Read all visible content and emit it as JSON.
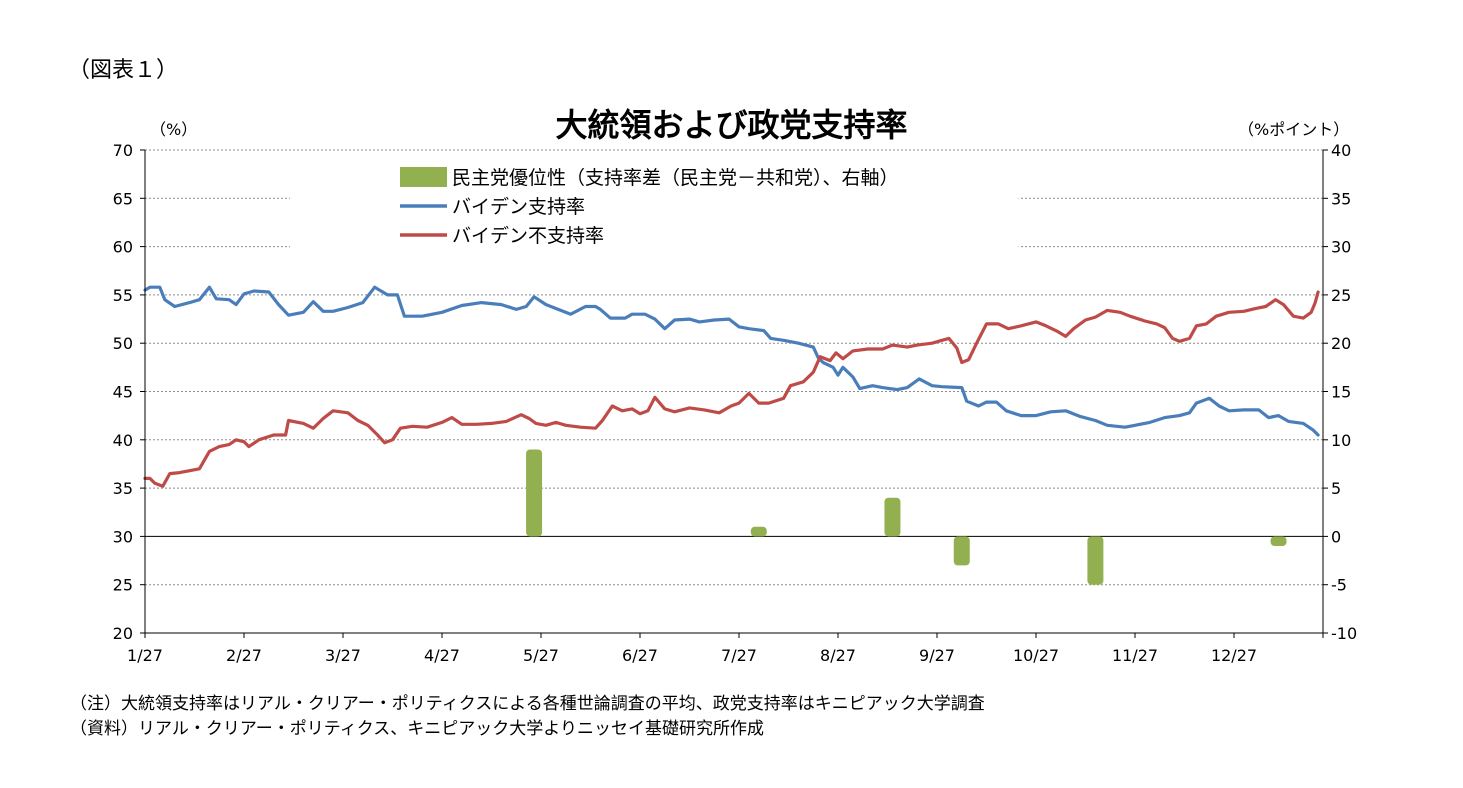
{
  "figure_label": "（図表１）",
  "notes": [
    "（注）大統領支持率はリアル・クリアー・ポリティクスによる各種世論調査の平均、政党支持率はキニピアック大学調査",
    "（資料）リアル・クリアー・ポリティクス、キニピアック大学よりニッセイ基礎研究所作成"
  ],
  "chart_data": {
    "type": "line",
    "title": "大統領および政党支持率",
    "ylabel": "（%）",
    "y2label": "（%ポイント）",
    "ylim": [
      20,
      70
    ],
    "y2lim": [
      -10,
      40
    ],
    "yticks": [
      "70",
      "65",
      "60",
      "55",
      "50",
      "45",
      "40",
      "35",
      "30",
      "25",
      "20"
    ],
    "y2ticks": [
      "40",
      "35",
      "30",
      "25",
      "20",
      "15",
      "10",
      "5",
      "0",
      "-5",
      "-10"
    ],
    "categories": [
      "1/27",
      "2/27",
      "3/27",
      "4/27",
      "5/27",
      "6/27",
      "7/27",
      "8/27",
      "9/27",
      "10/27",
      "11/27",
      "12/27"
    ],
    "grid": true,
    "legend_position": "top-center",
    "series": [
      {
        "name": "民主党優位性（支持率差（民主党－共和党）、右軸）",
        "type": "bar",
        "axis": "right",
        "color": "#92B050",
        "points": [
          {
            "x": 3.93,
            "y": 9
          },
          {
            "x": 6.2,
            "y": 1
          },
          {
            "x": 7.55,
            "y": 4
          },
          {
            "x": 8.25,
            "y": -3
          },
          {
            "x": 9.6,
            "y": -5
          },
          {
            "x": 11.45,
            "y": -1
          }
        ]
      },
      {
        "name": "バイデン支持率",
        "type": "line",
        "axis": "left",
        "color": "#4A7EBB",
        "points": [
          {
            "x": 0,
            "y": 55.5
          },
          {
            "x": 0.05,
            "y": 55.8
          },
          {
            "x": 0.15,
            "y": 55.8
          },
          {
            "x": 0.2,
            "y": 54.5
          },
          {
            "x": 0.3,
            "y": 53.8
          },
          {
            "x": 0.45,
            "y": 54.2
          },
          {
            "x": 0.55,
            "y": 54.5
          },
          {
            "x": 0.65,
            "y": 55.8
          },
          {
            "x": 0.72,
            "y": 54.6
          },
          {
            "x": 0.85,
            "y": 54.5
          },
          {
            "x": 0.92,
            "y": 54.0
          },
          {
            "x": 1.0,
            "y": 55.1
          },
          {
            "x": 1.1,
            "y": 55.4
          },
          {
            "x": 1.25,
            "y": 55.3
          },
          {
            "x": 1.35,
            "y": 54.0
          },
          {
            "x": 1.45,
            "y": 52.9
          },
          {
            "x": 1.6,
            "y": 53.2
          },
          {
            "x": 1.7,
            "y": 54.3
          },
          {
            "x": 1.8,
            "y": 53.3
          },
          {
            "x": 1.9,
            "y": 53.3
          },
          {
            "x": 2.05,
            "y": 53.7
          },
          {
            "x": 2.2,
            "y": 54.2
          },
          {
            "x": 2.32,
            "y": 55.8
          },
          {
            "x": 2.45,
            "y": 55.0
          },
          {
            "x": 2.55,
            "y": 55.0
          },
          {
            "x": 2.62,
            "y": 52.8
          },
          {
            "x": 2.8,
            "y": 52.8
          },
          {
            "x": 3.0,
            "y": 53.2
          },
          {
            "x": 3.2,
            "y": 53.9
          },
          {
            "x": 3.4,
            "y": 54.2
          },
          {
            "x": 3.6,
            "y": 54.0
          },
          {
            "x": 3.75,
            "y": 53.5
          },
          {
            "x": 3.85,
            "y": 53.8
          },
          {
            "x": 3.93,
            "y": 54.8
          },
          {
            "x": 4.05,
            "y": 54.0
          },
          {
            "x": 4.2,
            "y": 53.4
          },
          {
            "x": 4.3,
            "y": 53.0
          },
          {
            "x": 4.45,
            "y": 53.8
          },
          {
            "x": 4.55,
            "y": 53.8
          },
          {
            "x": 4.6,
            "y": 53.5
          },
          {
            "x": 4.7,
            "y": 52.6
          },
          {
            "x": 4.85,
            "y": 52.6
          },
          {
            "x": 4.92,
            "y": 53.0
          },
          {
            "x": 5.05,
            "y": 53.0
          },
          {
            "x": 5.15,
            "y": 52.5
          },
          {
            "x": 5.25,
            "y": 51.5
          },
          {
            "x": 5.35,
            "y": 52.4
          },
          {
            "x": 5.5,
            "y": 52.5
          },
          {
            "x": 5.6,
            "y": 52.2
          },
          {
            "x": 5.75,
            "y": 52.4
          },
          {
            "x": 5.9,
            "y": 52.5
          },
          {
            "x": 6.0,
            "y": 51.7
          },
          {
            "x": 6.1,
            "y": 51.5
          },
          {
            "x": 6.25,
            "y": 51.3
          },
          {
            "x": 6.32,
            "y": 50.5
          },
          {
            "x": 6.45,
            "y": 50.3
          },
          {
            "x": 6.6,
            "y": 50.0
          },
          {
            "x": 6.75,
            "y": 49.6
          },
          {
            "x": 6.8,
            "y": 48.5
          },
          {
            "x": 6.85,
            "y": 48.0
          },
          {
            "x": 6.95,
            "y": 47.5
          },
          {
            "x": 7.0,
            "y": 46.7
          },
          {
            "x": 7.05,
            "y": 47.5
          },
          {
            "x": 7.15,
            "y": 46.5
          },
          {
            "x": 7.22,
            "y": 45.3
          },
          {
            "x": 7.35,
            "y": 45.6
          },
          {
            "x": 7.45,
            "y": 45.4
          },
          {
            "x": 7.6,
            "y": 45.2
          },
          {
            "x": 7.7,
            "y": 45.4
          },
          {
            "x": 7.82,
            "y": 46.3
          },
          {
            "x": 7.95,
            "y": 45.6
          },
          {
            "x": 8.05,
            "y": 45.5
          },
          {
            "x": 8.25,
            "y": 45.4
          },
          {
            "x": 8.3,
            "y": 44.0
          },
          {
            "x": 8.42,
            "y": 43.5
          },
          {
            "x": 8.5,
            "y": 43.9
          },
          {
            "x": 8.6,
            "y": 43.9
          },
          {
            "x": 8.7,
            "y": 43.0
          },
          {
            "x": 8.85,
            "y": 42.5
          },
          {
            "x": 9.0,
            "y": 42.5
          },
          {
            "x": 9.15,
            "y": 42.9
          },
          {
            "x": 9.3,
            "y": 43.0
          },
          {
            "x": 9.45,
            "y": 42.4
          },
          {
            "x": 9.6,
            "y": 42.0
          },
          {
            "x": 9.72,
            "y": 41.5
          },
          {
            "x": 9.9,
            "y": 41.3
          },
          {
            "x": 10.0,
            "y": 41.5
          },
          {
            "x": 10.15,
            "y": 41.8
          },
          {
            "x": 10.3,
            "y": 42.3
          },
          {
            "x": 10.45,
            "y": 42.5
          },
          {
            "x": 10.55,
            "y": 42.8
          },
          {
            "x": 10.62,
            "y": 43.8
          },
          {
            "x": 10.75,
            "y": 44.3
          },
          {
            "x": 10.85,
            "y": 43.5
          },
          {
            "x": 10.95,
            "y": 43.0
          },
          {
            "x": 11.1,
            "y": 43.1
          },
          {
            "x": 11.25,
            "y": 43.1
          },
          {
            "x": 11.35,
            "y": 42.3
          },
          {
            "x": 11.45,
            "y": 42.5
          },
          {
            "x": 11.55,
            "y": 41.9
          },
          {
            "x": 11.7,
            "y": 41.7
          },
          {
            "x": 11.8,
            "y": 41.0
          },
          {
            "x": 11.85,
            "y": 40.5
          }
        ]
      },
      {
        "name": "バイデン不支持率",
        "type": "line",
        "axis": "left",
        "color": "#BE4B48",
        "points": [
          {
            "x": 0,
            "y": 36.0
          },
          {
            "x": 0.05,
            "y": 36.0
          },
          {
            "x": 0.1,
            "y": 35.5
          },
          {
            "x": 0.18,
            "y": 35.2
          },
          {
            "x": 0.25,
            "y": 36.5
          },
          {
            "x": 0.35,
            "y": 36.6
          },
          {
            "x": 0.45,
            "y": 36.8
          },
          {
            "x": 0.55,
            "y": 37.0
          },
          {
            "x": 0.65,
            "y": 38.8
          },
          {
            "x": 0.75,
            "y": 39.3
          },
          {
            "x": 0.85,
            "y": 39.5
          },
          {
            "x": 0.92,
            "y": 40.0
          },
          {
            "x": 1.0,
            "y": 39.8
          },
          {
            "x": 1.05,
            "y": 39.3
          },
          {
            "x": 1.15,
            "y": 40.0
          },
          {
            "x": 1.3,
            "y": 40.5
          },
          {
            "x": 1.42,
            "y": 40.5
          },
          {
            "x": 1.45,
            "y": 42.0
          },
          {
            "x": 1.6,
            "y": 41.7
          },
          {
            "x": 1.7,
            "y": 41.2
          },
          {
            "x": 1.8,
            "y": 42.2
          },
          {
            "x": 1.9,
            "y": 43.0
          },
          {
            "x": 2.05,
            "y": 42.8
          },
          {
            "x": 2.15,
            "y": 42.0
          },
          {
            "x": 2.25,
            "y": 41.5
          },
          {
            "x": 2.35,
            "y": 40.5
          },
          {
            "x": 2.42,
            "y": 39.7
          },
          {
            "x": 2.5,
            "y": 40.0
          },
          {
            "x": 2.58,
            "y": 41.2
          },
          {
            "x": 2.7,
            "y": 41.4
          },
          {
            "x": 2.85,
            "y": 41.3
          },
          {
            "x": 3.0,
            "y": 41.8
          },
          {
            "x": 3.1,
            "y": 42.3
          },
          {
            "x": 3.2,
            "y": 41.6
          },
          {
            "x": 3.35,
            "y": 41.6
          },
          {
            "x": 3.5,
            "y": 41.7
          },
          {
            "x": 3.65,
            "y": 41.9
          },
          {
            "x": 3.8,
            "y": 42.6
          },
          {
            "x": 3.88,
            "y": 42.2
          },
          {
            "x": 3.95,
            "y": 41.7
          },
          {
            "x": 4.05,
            "y": 41.5
          },
          {
            "x": 4.15,
            "y": 41.8
          },
          {
            "x": 4.25,
            "y": 41.5
          },
          {
            "x": 4.4,
            "y": 41.3
          },
          {
            "x": 4.55,
            "y": 41.2
          },
          {
            "x": 4.62,
            "y": 42.0
          },
          {
            "x": 4.72,
            "y": 43.5
          },
          {
            "x": 4.82,
            "y": 43.0
          },
          {
            "x": 4.92,
            "y": 43.2
          },
          {
            "x": 5.0,
            "y": 42.7
          },
          {
            "x": 5.08,
            "y": 43.0
          },
          {
            "x": 5.15,
            "y": 44.4
          },
          {
            "x": 5.25,
            "y": 43.2
          },
          {
            "x": 5.35,
            "y": 42.9
          },
          {
            "x": 5.5,
            "y": 43.3
          },
          {
            "x": 5.65,
            "y": 43.1
          },
          {
            "x": 5.8,
            "y": 42.8
          },
          {
            "x": 5.92,
            "y": 43.5
          },
          {
            "x": 6.0,
            "y": 43.8
          },
          {
            "x": 6.1,
            "y": 44.8
          },
          {
            "x": 6.2,
            "y": 43.8
          },
          {
            "x": 6.3,
            "y": 43.8
          },
          {
            "x": 6.45,
            "y": 44.3
          },
          {
            "x": 6.52,
            "y": 45.6
          },
          {
            "x": 6.65,
            "y": 46.0
          },
          {
            "x": 6.75,
            "y": 47.0
          },
          {
            "x": 6.82,
            "y": 48.6
          },
          {
            "x": 6.92,
            "y": 48.2
          },
          {
            "x": 6.98,
            "y": 49.0
          },
          {
            "x": 7.05,
            "y": 48.4
          },
          {
            "x": 7.15,
            "y": 49.2
          },
          {
            "x": 7.3,
            "y": 49.4
          },
          {
            "x": 7.45,
            "y": 49.4
          },
          {
            "x": 7.55,
            "y": 49.8
          },
          {
            "x": 7.7,
            "y": 49.6
          },
          {
            "x": 7.8,
            "y": 49.8
          },
          {
            "x": 7.95,
            "y": 50.0
          },
          {
            "x": 8.05,
            "y": 50.3
          },
          {
            "x": 8.12,
            "y": 50.5
          },
          {
            "x": 8.2,
            "y": 49.5
          },
          {
            "x": 8.25,
            "y": 48.0
          },
          {
            "x": 8.32,
            "y": 48.3
          },
          {
            "x": 8.4,
            "y": 50.0
          },
          {
            "x": 8.5,
            "y": 52.0
          },
          {
            "x": 8.62,
            "y": 52.0
          },
          {
            "x": 8.72,
            "y": 51.5
          },
          {
            "x": 8.85,
            "y": 51.8
          },
          {
            "x": 9.0,
            "y": 52.2
          },
          {
            "x": 9.1,
            "y": 51.8
          },
          {
            "x": 9.22,
            "y": 51.2
          },
          {
            "x": 9.3,
            "y": 50.7
          },
          {
            "x": 9.38,
            "y": 51.5
          },
          {
            "x": 9.5,
            "y": 52.4
          },
          {
            "x": 9.6,
            "y": 52.7
          },
          {
            "x": 9.72,
            "y": 53.4
          },
          {
            "x": 9.85,
            "y": 53.2
          },
          {
            "x": 9.95,
            "y": 52.8
          },
          {
            "x": 10.1,
            "y": 52.3
          },
          {
            "x": 10.22,
            "y": 52.0
          },
          {
            "x": 10.3,
            "y": 51.6
          },
          {
            "x": 10.38,
            "y": 50.5
          },
          {
            "x": 10.45,
            "y": 50.2
          },
          {
            "x": 10.55,
            "y": 50.5
          },
          {
            "x": 10.62,
            "y": 51.8
          },
          {
            "x": 10.72,
            "y": 52.0
          },
          {
            "x": 10.82,
            "y": 52.8
          },
          {
            "x": 10.95,
            "y": 53.2
          },
          {
            "x": 11.1,
            "y": 53.3
          },
          {
            "x": 11.22,
            "y": 53.6
          },
          {
            "x": 11.32,
            "y": 53.8
          },
          {
            "x": 11.42,
            "y": 54.5
          },
          {
            "x": 11.5,
            "y": 54.0
          },
          {
            "x": 11.6,
            "y": 52.8
          },
          {
            "x": 11.7,
            "y": 52.6
          },
          {
            "x": 11.78,
            "y": 53.2
          },
          {
            "x": 11.82,
            "y": 54.2
          },
          {
            "x": 11.85,
            "y": 55.3
          }
        ]
      }
    ]
  }
}
